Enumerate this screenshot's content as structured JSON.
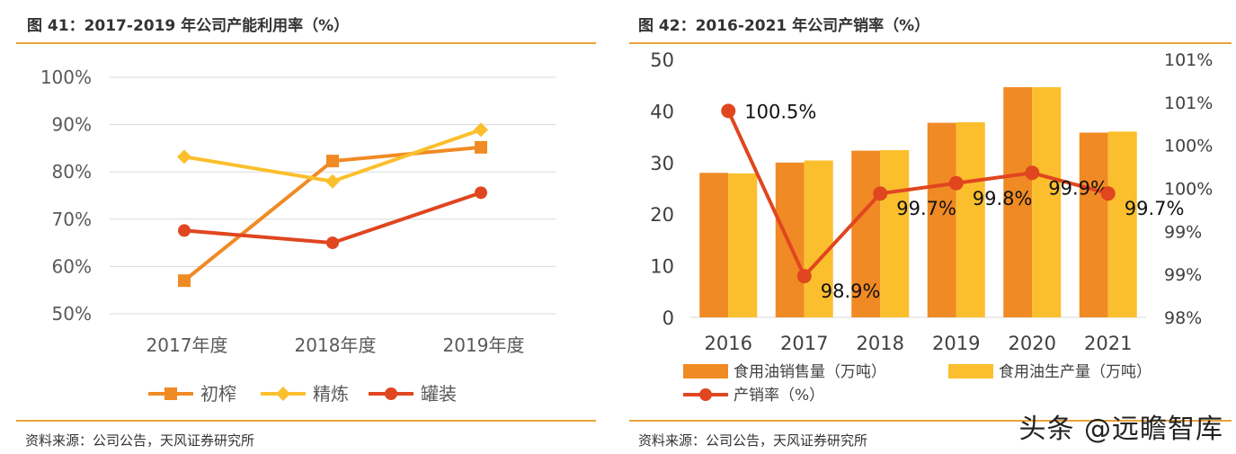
{
  "left": {
    "title": "图 41：2017-2019 年公司产能利用率（%）",
    "source": "资料来源：公司公告，天风证券研究所"
  },
  "right": {
    "title": "图 42：2016-2021 年公司产销率（%）",
    "source": "资料来源：公司公告，天风证券研究所"
  },
  "watermark": "头条 @远瞻智库",
  "chart_data": [
    {
      "type": "line",
      "categories": [
        "2017年度",
        "2018年度",
        "2019年度"
      ],
      "series": [
        {
          "name": "初榨",
          "values": [
            57,
            82.3,
            85.2
          ]
        },
        {
          "name": "精炼",
          "values": [
            83.2,
            78,
            88.9
          ]
        },
        {
          "name": "罐装",
          "values": [
            67.6,
            65,
            75.6
          ]
        }
      ],
      "ylim": [
        50,
        100
      ],
      "y_ticks": [
        50,
        60,
        70,
        80,
        90,
        100
      ],
      "y_tick_labels": [
        "50%",
        "60%",
        "70%",
        "80%",
        "90%",
        "100%"
      ],
      "grid": true,
      "legend_position": "bottom",
      "colors": {
        "初榨": "#f08a24",
        "精炼": "#fbbf2d",
        "罐装": "#e0461f"
      }
    },
    {
      "type": "bar",
      "categories": [
        "2016",
        "2017",
        "2018",
        "2019",
        "2020",
        "2021"
      ],
      "series": [
        {
          "name": "食用油销售量（万吨）",
          "values": [
            28,
            30,
            32.3,
            37.7,
            44.6,
            35.8
          ],
          "axis": "left"
        },
        {
          "name": "食用油生产量（万吨）",
          "values": [
            27.9,
            30.4,
            32.4,
            37.8,
            44.6,
            36
          ],
          "axis": "left"
        },
        {
          "name": "产销率（%）",
          "type": "line",
          "axis": "right",
          "values": [
            100.5,
            98.9,
            99.7,
            99.8,
            99.9,
            99.7
          ],
          "labels": [
            "100.5%",
            "98.9%",
            "99.7%",
            "99.8%",
            "99.9%",
            "99.7%"
          ]
        }
      ],
      "ylim": [
        0,
        50
      ],
      "y_ticks": [
        0,
        10,
        20,
        30,
        40,
        50
      ],
      "y_tick_labels": [
        "0",
        "10",
        "20",
        "30",
        "40",
        "50"
      ],
      "y2lim": [
        98.5,
        101
      ],
      "y2_tick_labels": [
        "98%",
        "99%",
        "99%",
        "100%",
        "100%",
        "101%",
        "101%"
      ],
      "grid": false,
      "legend_position": "bottom",
      "colors": {
        "食用油销售量（万吨）": "#f08a24",
        "食用油生产量（万吨）": "#fbbf2d",
        "产销率（%）": "#e0461f"
      }
    }
  ]
}
